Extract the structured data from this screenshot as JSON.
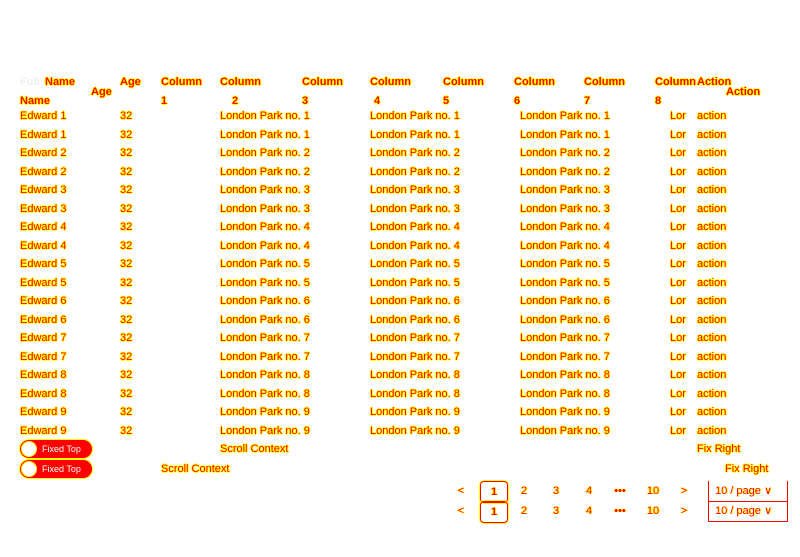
{
  "table": {
    "header_full": "Full",
    "header_name": "Name",
    "header_age": "Age",
    "column_word": "Column",
    "column_numbers": [
      "1",
      "2",
      "3",
      "4",
      "5",
      "6",
      "7",
      "8"
    ],
    "header_action": "Action",
    "rows": [
      {
        "name": "Edward 1",
        "age": "32",
        "address": "London Park no. 1",
        "short": "Lor",
        "action": "action"
      },
      {
        "name": "Edward 2",
        "age": "32",
        "address": "London Park no. 2",
        "short": "Lor",
        "action": "action"
      },
      {
        "name": "Edward 3",
        "age": "32",
        "address": "London Park no. 3",
        "short": "Lor",
        "action": "action"
      },
      {
        "name": "Edward 4",
        "age": "32",
        "address": "London Park no. 4",
        "short": "Lor",
        "action": "action"
      },
      {
        "name": "Edward 5",
        "age": "32",
        "address": "London Park no. 5",
        "short": "Lor",
        "action": "action"
      },
      {
        "name": "Edward 6",
        "age": "32",
        "address": "London Park no. 6",
        "short": "Lor",
        "action": "action"
      },
      {
        "name": "Edward 7",
        "age": "32",
        "address": "London Park no. 7",
        "short": "Lor",
        "action": "action"
      },
      {
        "name": "Edward 8",
        "age": "32",
        "address": "London Park no. 8",
        "short": "Lor",
        "action": "action"
      },
      {
        "name": "Edward 9",
        "age": "32",
        "address": "London Park no. 9",
        "short": "Lor",
        "action": "action"
      }
    ]
  },
  "footer": {
    "switch_label": "Fixed Top",
    "switch_on": true,
    "scroll_context": "Scroll Context",
    "fix_right": "Fix Right"
  },
  "pagination": {
    "prev": "<",
    "pages": [
      "1",
      "2",
      "3",
      "4"
    ],
    "ellipsis": "•••",
    "last": "10",
    "next": ">",
    "current": "1",
    "page_size": "10 / page",
    "chevron": "∨"
  },
  "colors": {
    "text": "#ff0000",
    "outline": "#ffff00"
  }
}
